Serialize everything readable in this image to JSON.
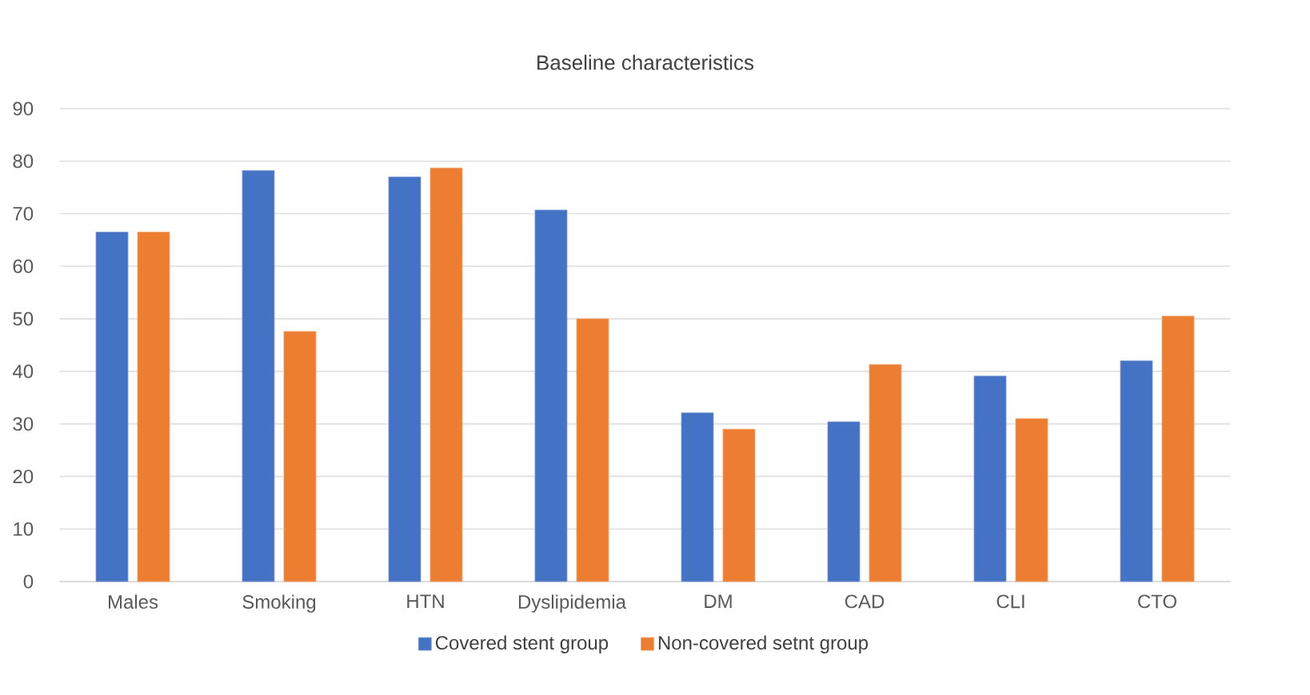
{
  "chart_data": {
    "type": "bar",
    "title": "Baseline characteristics",
    "categories": [
      "Males",
      "Smoking",
      "HTN",
      "Dyslipidemia",
      "DM",
      "CAD",
      "CLI",
      "CTO"
    ],
    "series": [
      {
        "name": "Covered stent group",
        "color": "#4472c4",
        "values": [
          66.5,
          78.2,
          77.0,
          70.7,
          32.1,
          30.4,
          39.1,
          42.0
        ]
      },
      {
        "name": "Non-covered setnt group",
        "color": "#ed7d31",
        "values": [
          66.5,
          47.6,
          78.7,
          50.0,
          29.0,
          41.3,
          31.0,
          50.5
        ]
      }
    ],
    "ylim": [
      0,
      90
    ],
    "yticks": [
      0,
      10,
      20,
      30,
      40,
      50,
      60,
      70,
      80,
      90
    ],
    "grid": "y",
    "legend": "bottom"
  }
}
